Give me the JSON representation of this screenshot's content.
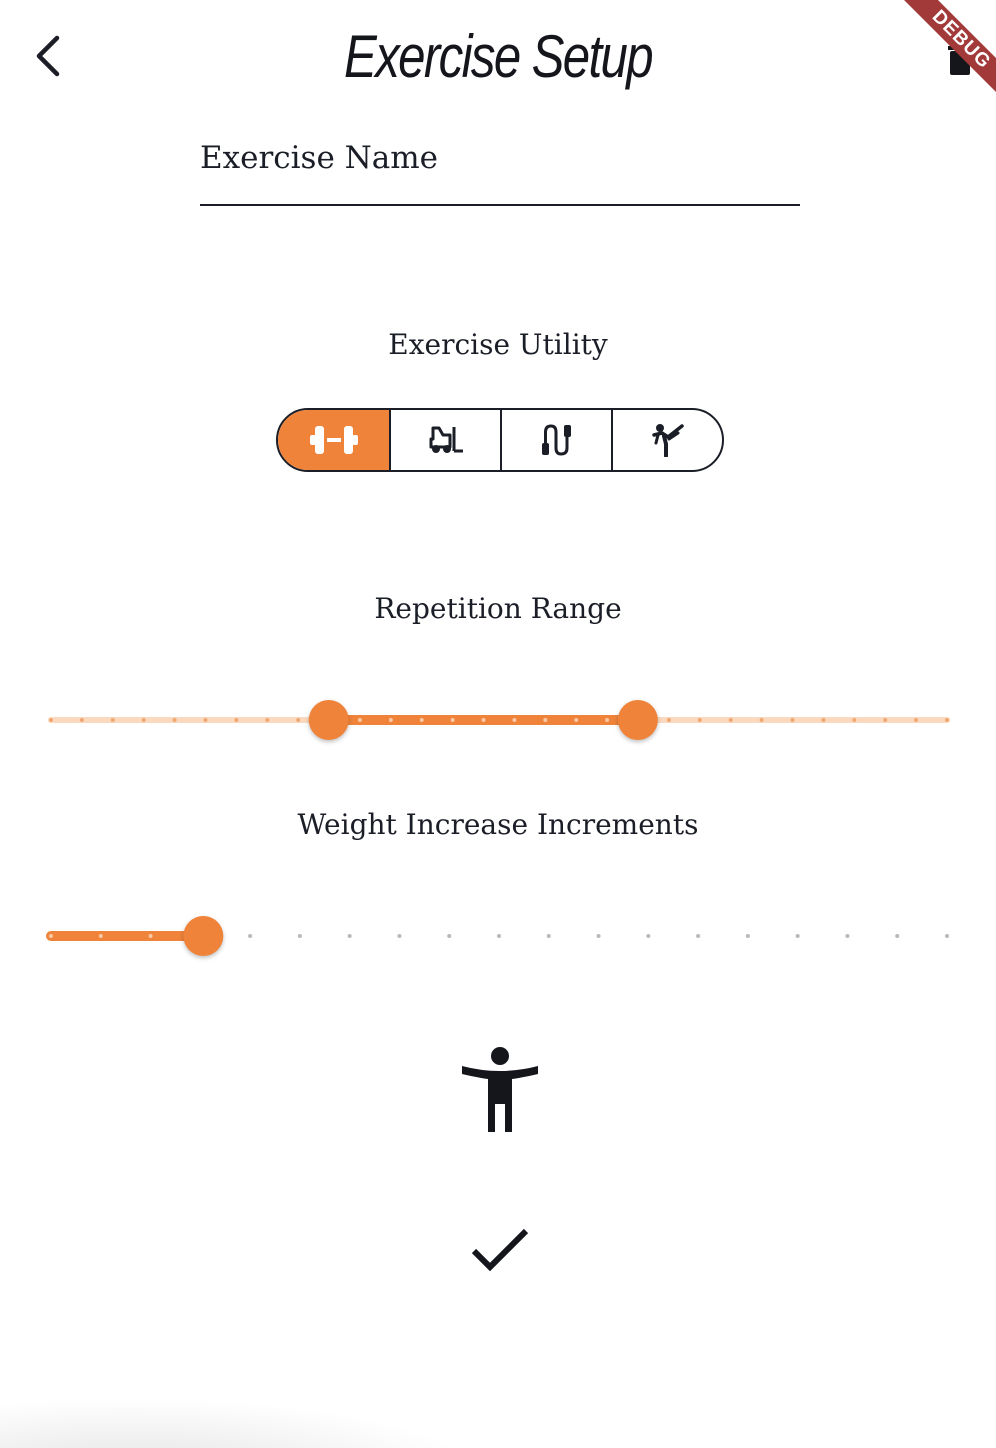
{
  "header": {
    "title": "Exercise Setup",
    "back_icon": "chevron-left-icon",
    "trash_icon": "trash-icon",
    "debug_banner": "DEBUG"
  },
  "exercise_name": {
    "placeholder": "Exercise Name",
    "value": ""
  },
  "exercise_utility": {
    "label": "Exercise Utility",
    "selected_index": 0,
    "options": [
      {
        "icon": "dumbbell-icon"
      },
      {
        "icon": "forklift-icon"
      },
      {
        "icon": "jump-rope-icon"
      },
      {
        "icon": "martial-arts-kick-icon"
      }
    ]
  },
  "repetition_range": {
    "label": "Repetition Range",
    "divisions": 29,
    "start_fraction": 0.31,
    "end_fraction": 0.655
  },
  "weight_increase_increments": {
    "label": "Weight Increase Increments",
    "divisions": 18,
    "value_fraction": 0.17
  },
  "body_icon": "accessibility-person-icon",
  "confirm_icon": "checkmark-icon",
  "colors": {
    "accent": "#ef833a",
    "accent_light": "#fbd9bf",
    "text": "#1b1e27",
    "debug_ribbon": "#a23a3a"
  }
}
